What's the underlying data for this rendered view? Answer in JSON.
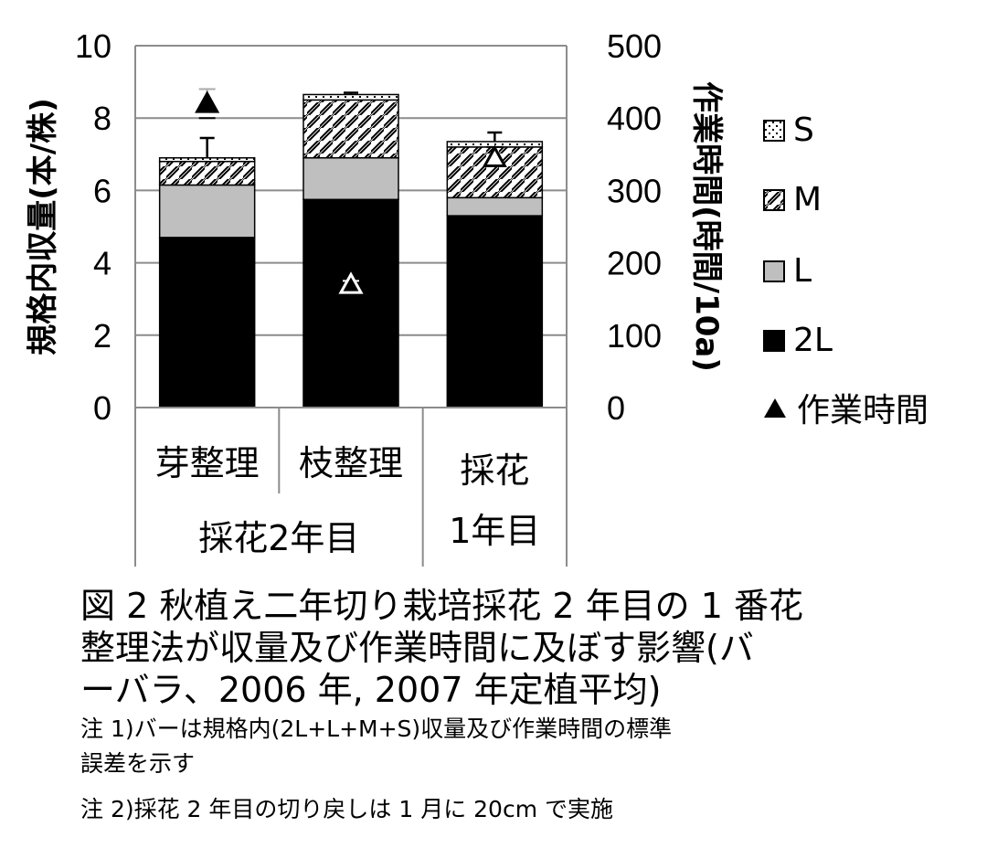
{
  "chart_data": {
    "type": "bar",
    "stacked": true,
    "categories": [
      "芽整理",
      "枝整理",
      "採花\n1年目"
    ],
    "category_groups": [
      {
        "label": "採花2年目",
        "span": [
          0,
          1
        ]
      }
    ],
    "series": [
      {
        "name": "2L",
        "values": [
          4.7,
          5.75,
          5.3
        ],
        "color": "#000000",
        "pattern": "solid"
      },
      {
        "name": "L",
        "values": [
          1.45,
          1.15,
          0.5
        ],
        "color": "#bfbfbf",
        "pattern": "solid"
      },
      {
        "name": "M",
        "values": [
          0.65,
          1.6,
          1.4
        ],
        "color": "#ffffff",
        "pattern": "hatch"
      },
      {
        "name": "S",
        "values": [
          0.1,
          0.15,
          0.15
        ],
        "color": "#ffffff",
        "pattern": "dots"
      }
    ],
    "error_bars_left": [
      0.55,
      0.05,
      0.25
    ],
    "work_time": {
      "name": "作業時間",
      "values": [
        420,
        170,
        345
      ],
      "errors": [
        20,
        5,
        15
      ],
      "markers": [
        "filled-triangle",
        "open-triangle",
        "open-triangle"
      ]
    },
    "ylabel": "規格内収量(本/株)",
    "ylabel_right": "作業時間(時間/10a)",
    "ylim": [
      0,
      10
    ],
    "ylim_right": [
      0,
      500
    ],
    "yticks": [
      "0",
      "2",
      "4",
      "6",
      "8",
      "10"
    ],
    "yticks_right": [
      "0",
      "100",
      "200",
      "300",
      "400",
      "500"
    ],
    "legend_order": [
      "S",
      "M",
      "L",
      "2L",
      "作業時間"
    ],
    "legend_position": "right",
    "grid": "horizontal"
  },
  "caption": {
    "title_line1": "図 2  秋植え二年切り栽培採花 2 年目の 1 番花",
    "title_line2": "整理法が収量及び作業時間に及ぼす影響(バ",
    "title_line3": "ーバラ、2006 年, 2007 年定植平均)",
    "note1_line1": "注  1)バーは規格内(2L+L+M+S)収量及び作業時間の標準",
    "note1_line2": "誤差を示す",
    "note2": "注 2)採花 2 年目の切り戻しは 1 月に 20cm で実施"
  }
}
